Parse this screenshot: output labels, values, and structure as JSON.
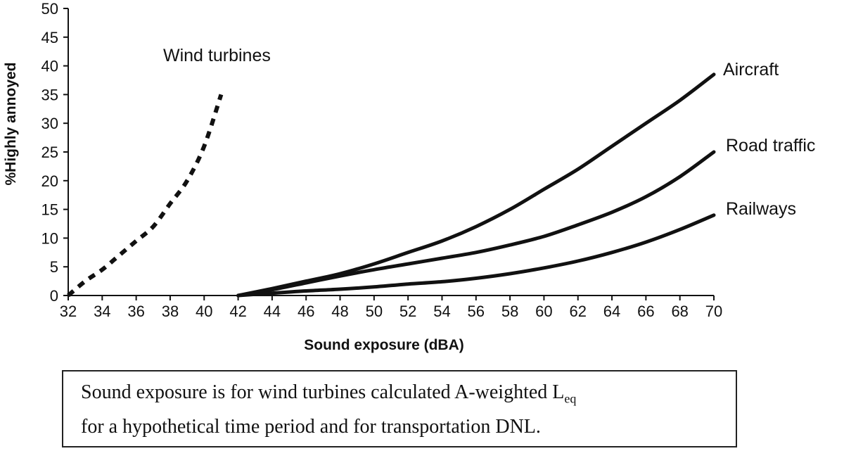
{
  "chart_data": {
    "type": "line",
    "xlabel": "Sound exposure (dBA)",
    "ylabel": "%Highly annoyed",
    "xlim": [
      32,
      70
    ],
    "ylim": [
      0,
      50
    ],
    "xticks": [
      "32",
      "34",
      "36",
      "38",
      "40",
      "42",
      "44",
      "46",
      "48",
      "50",
      "52",
      "54",
      "56",
      "58",
      "60",
      "62",
      "64",
      "66",
      "68",
      "70"
    ],
    "yticks": [
      "0",
      "5",
      "10",
      "15",
      "20",
      "25",
      "30",
      "35",
      "40",
      "45",
      "50"
    ],
    "grid": false,
    "legend": "direct labels at line ends",
    "series": [
      {
        "name": "Wind turbines",
        "style": "dashed",
        "x": [
          32,
          33,
          34,
          35,
          36,
          37,
          38,
          39,
          40,
          41
        ],
        "y": [
          0,
          2.5,
          4.5,
          7,
          9.5,
          12,
          16,
          20,
          26,
          35
        ]
      },
      {
        "name": "Aircraft",
        "style": "solid",
        "x": [
          42,
          44,
          46,
          48,
          50,
          52,
          54,
          56,
          58,
          60,
          62,
          64,
          66,
          68,
          70
        ],
        "y": [
          0,
          1.2,
          2.5,
          3.8,
          5.5,
          7.5,
          9.5,
          12,
          15,
          18.5,
          22,
          26,
          30,
          34,
          38.5
        ]
      },
      {
        "name": "Road traffic",
        "style": "solid",
        "x": [
          42,
          44,
          46,
          48,
          50,
          52,
          54,
          56,
          58,
          60,
          62,
          64,
          66,
          68,
          70
        ],
        "y": [
          0,
          1,
          2.2,
          3.4,
          4.5,
          5.5,
          6.5,
          7.5,
          8.8,
          10.3,
          12.3,
          14.5,
          17.2,
          20.7,
          25
        ]
      },
      {
        "name": "Railways",
        "style": "solid",
        "x": [
          42,
          44,
          46,
          48,
          50,
          52,
          54,
          56,
          58,
          60,
          62,
          64,
          66,
          68,
          70
        ],
        "y": [
          0,
          0.4,
          0.8,
          1.1,
          1.5,
          2,
          2.4,
          3,
          3.8,
          4.8,
          6,
          7.5,
          9.3,
          11.5,
          14
        ]
      }
    ]
  },
  "note": {
    "line1_prefix": "Sound exposure is for wind turbines calculated A-weighted L",
    "line1_sub": "eq",
    "line2": "for a hypothetical time period and for transportation DNL."
  }
}
